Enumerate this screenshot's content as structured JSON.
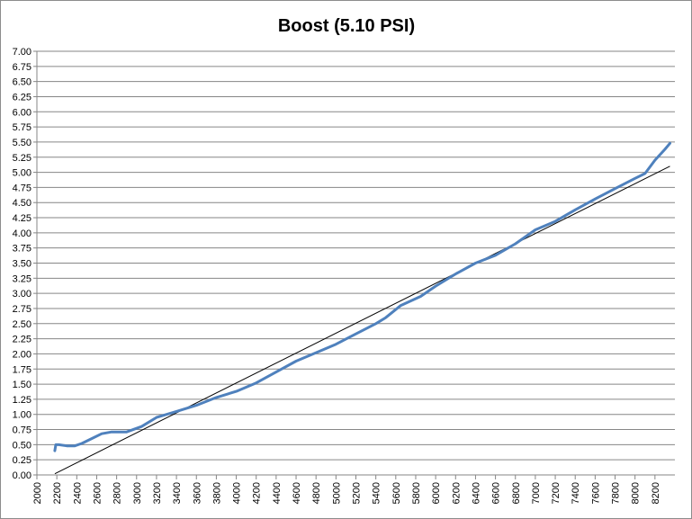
{
  "chart_data": {
    "type": "line",
    "title": "Boost (5.10 PSI)",
    "xlabel": "",
    "ylabel": "",
    "xlim": [
      2000,
      8400
    ],
    "ylim": [
      0,
      7
    ],
    "x_ticks": [
      "2000",
      "2200",
      "2400",
      "2600",
      "2800",
      "3000",
      "3200",
      "3400",
      "3600",
      "3800",
      "4000",
      "4200",
      "4400",
      "4600",
      "4800",
      "5000",
      "5200",
      "5400",
      "5600",
      "5800",
      "6000",
      "6200",
      "6400",
      "6600",
      "6800",
      "7000",
      "7200",
      "7400",
      "7600",
      "7800",
      "8000",
      "8200"
    ],
    "y_ticks": [
      "0.00",
      "0.25",
      "0.50",
      "0.75",
      "1.00",
      "1.25",
      "1.50",
      "1.75",
      "2.00",
      "2.25",
      "2.50",
      "2.75",
      "3.00",
      "3.25",
      "3.50",
      "3.75",
      "4.00",
      "4.25",
      "4.50",
      "4.75",
      "5.00",
      "5.25",
      "5.50",
      "5.75",
      "6.00",
      "6.25",
      "6.50",
      "6.75",
      "7.00"
    ],
    "grid": "horizontal",
    "legend": "none",
    "colors": {
      "series": "#4f81bd",
      "trend": "#000000",
      "grid": "#868686"
    },
    "series": [
      {
        "x": [
          2180,
          2190,
          2220,
          2300,
          2380,
          2450,
          2550,
          2650,
          2750,
          2900,
          3050,
          3200,
          3400,
          3600,
          3800,
          4000,
          4200,
          4400,
          4600,
          4800,
          5000,
          5200,
          5400,
          5500,
          5650,
          5850,
          6000,
          6200,
          6400,
          6600,
          6800,
          7000,
          7200,
          7400,
          7600,
          7800,
          8000,
          8100,
          8200,
          8300,
          8350
        ],
        "y": [
          0.4,
          0.5,
          0.5,
          0.48,
          0.48,
          0.52,
          0.6,
          0.68,
          0.71,
          0.71,
          0.8,
          0.95,
          1.05,
          1.15,
          1.28,
          1.38,
          1.52,
          1.7,
          1.88,
          2.02,
          2.16,
          2.33,
          2.5,
          2.6,
          2.8,
          2.95,
          3.12,
          3.32,
          3.5,
          3.63,
          3.82,
          4.05,
          4.19,
          4.38,
          4.56,
          4.73,
          4.9,
          4.98,
          5.2,
          5.38,
          5.48
        ]
      },
      {
        "x": [
          2180,
          8350
        ],
        "y": [
          0.02,
          5.1
        ]
      }
    ]
  }
}
